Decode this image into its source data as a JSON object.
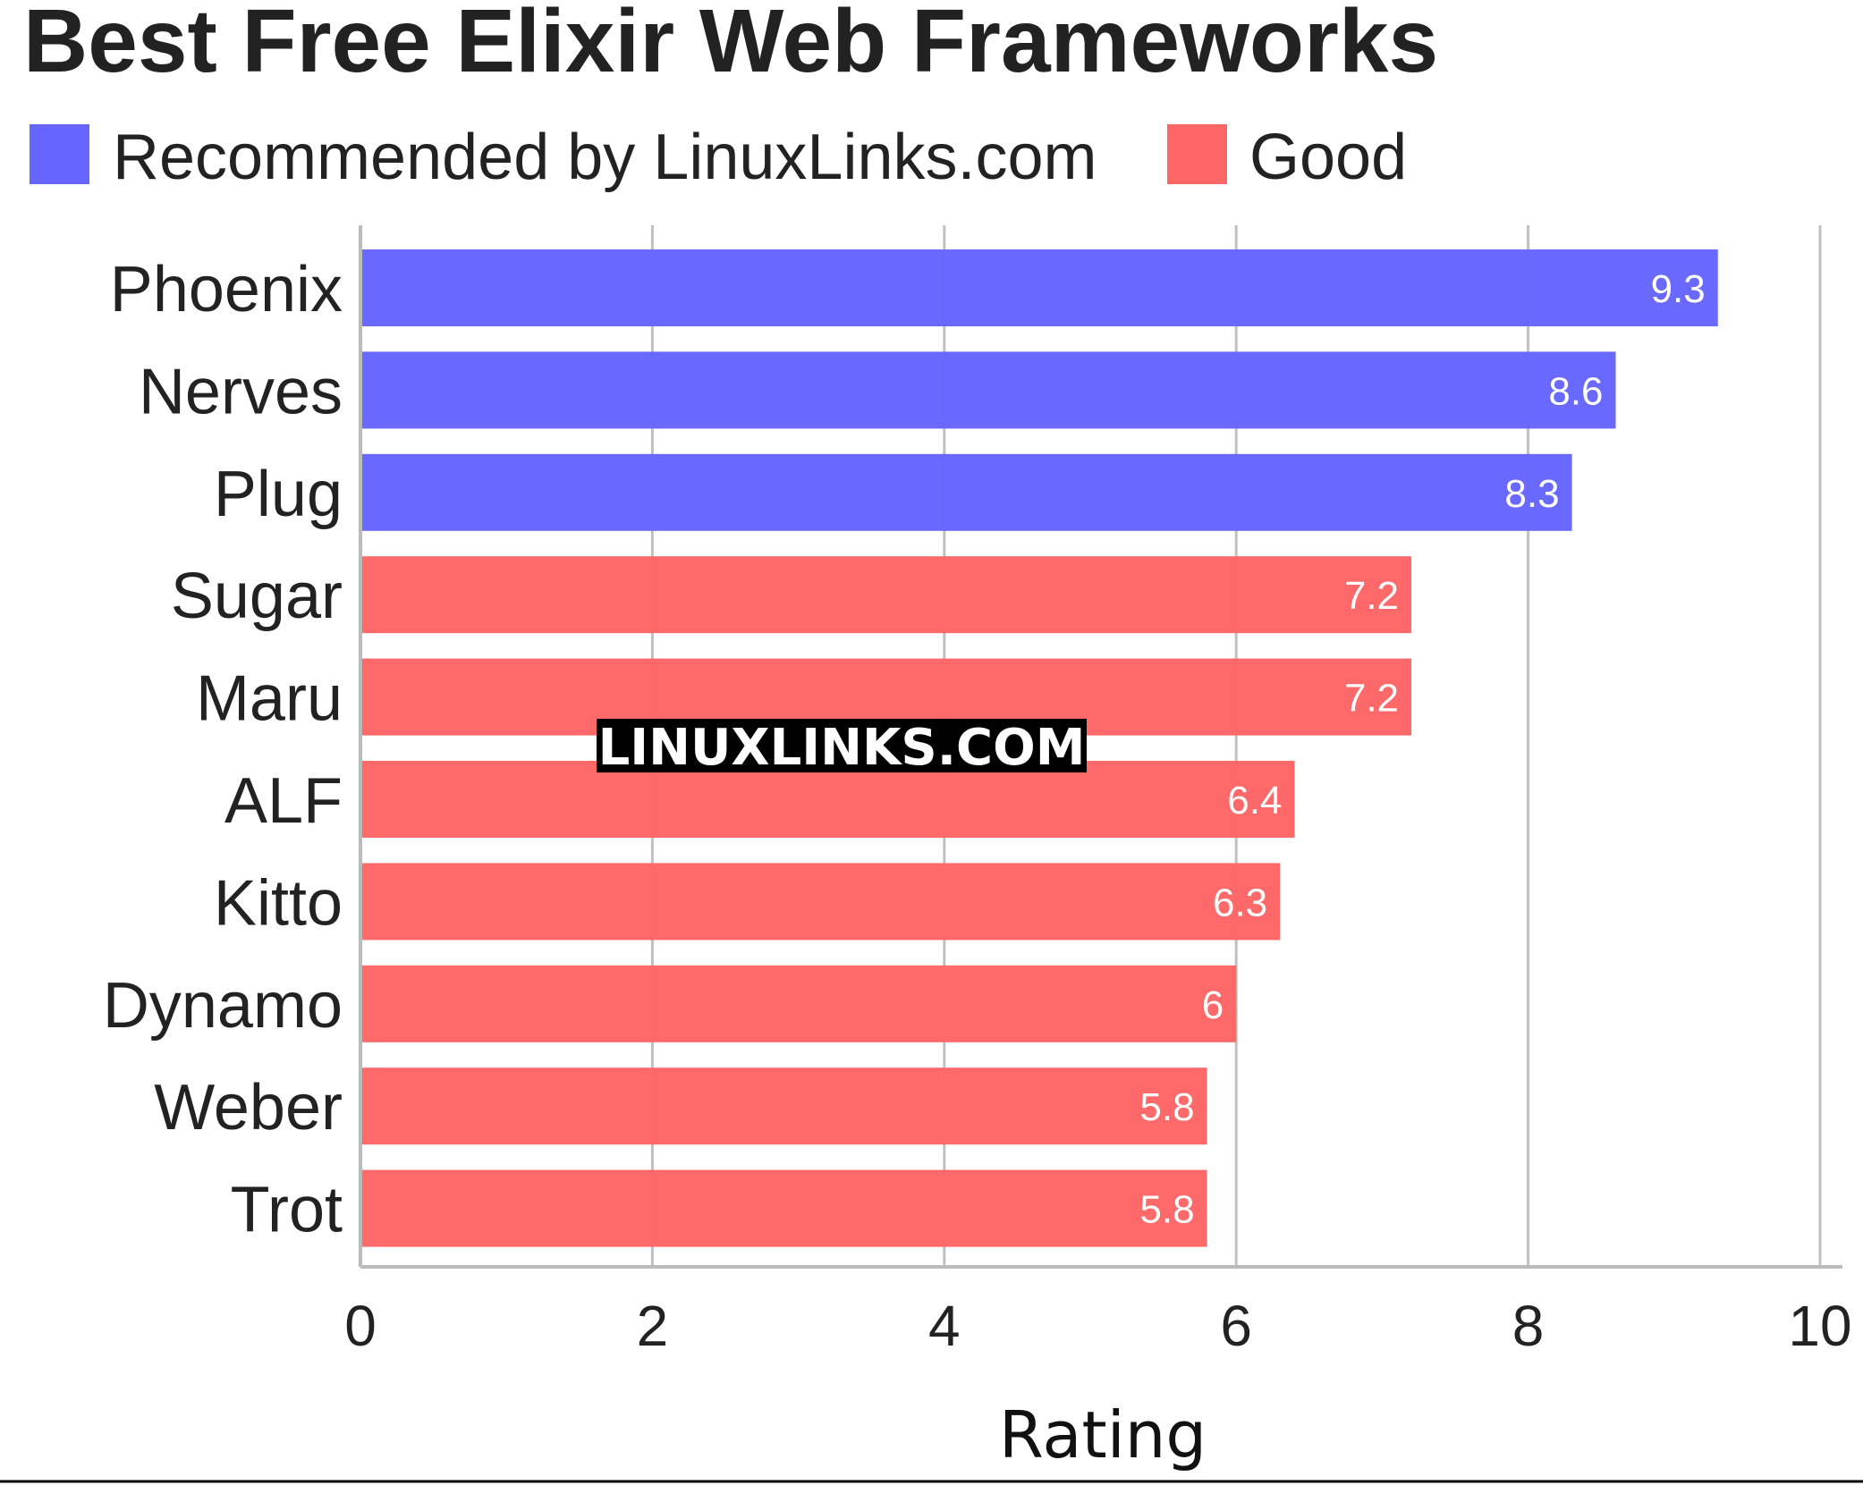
{
  "chart_data": {
    "type": "bar",
    "orientation": "horizontal",
    "title": "Best Free Elixir Web Frameworks",
    "xlabel": "Rating",
    "ylabel": "",
    "xlim": [
      0,
      10
    ],
    "x_ticks": [
      "0",
      "2",
      "4",
      "6",
      "8",
      "10"
    ],
    "grid": true,
    "legend_position": "top-left",
    "legend": [
      {
        "label": "Recommended by LinuxLinks.com",
        "color": "#6666ff"
      },
      {
        "label": "Good",
        "color": "#ff6666"
      }
    ],
    "categories": [
      "Phoenix",
      "Nerves",
      "Plug",
      "Sugar",
      "Maru",
      "ALF",
      "Kitto",
      "Dynamo",
      "Weber",
      "Trot"
    ],
    "values": [
      9.3,
      8.6,
      8.3,
      7.2,
      7.2,
      6.4,
      6.3,
      6,
      5.8,
      5.8
    ],
    "value_labels": [
      "9.3",
      "8.6",
      "8.3",
      "7.2",
      "7.2",
      "6.4",
      "6.3",
      "6",
      "5.8",
      "5.8"
    ],
    "bar_groups": [
      "Recommended by LinuxLinks.com",
      "Recommended by LinuxLinks.com",
      "Recommended by LinuxLinks.com",
      "Good",
      "Good",
      "Good",
      "Good",
      "Good",
      "Good",
      "Good"
    ],
    "watermark": "LINUXLINKS.COM"
  }
}
